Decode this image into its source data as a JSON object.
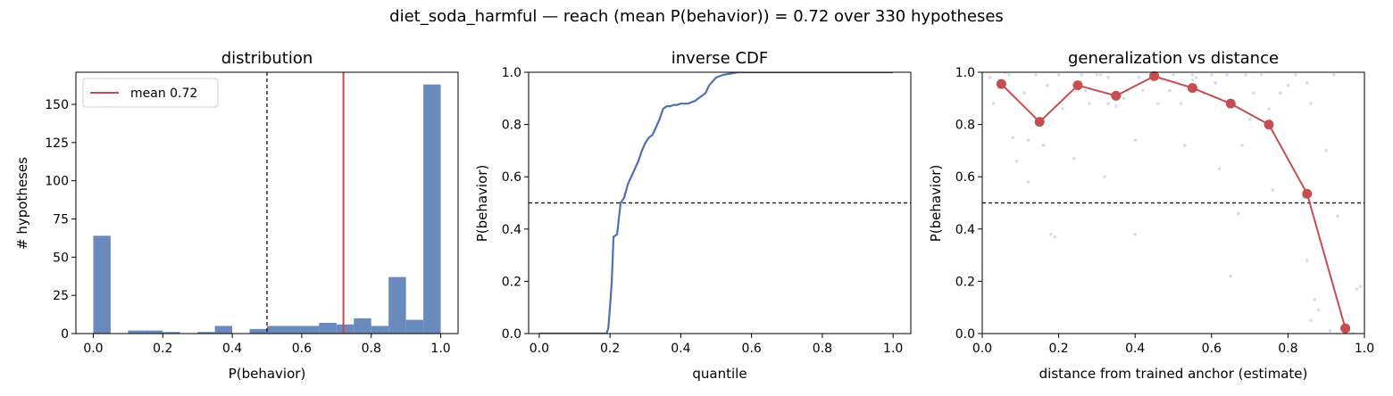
{
  "figure": {
    "title": "diet_soda_harmful  —  reach (mean P(behavior)) = 0.72  over 330 hypotheses"
  },
  "colors": {
    "bar": "#6a89bd",
    "line": "#4c72b0",
    "mean": "#c44e52",
    "scatter": "#b0c4de",
    "reference": "#000000"
  },
  "chart_data": [
    {
      "type": "bar",
      "title": "distribution",
      "xlabel": "P(behavior)",
      "ylabel": "# hypotheses",
      "xlim": [
        -0.05,
        1.05
      ],
      "ylim": [
        0,
        171
      ],
      "xticks": [
        0.0,
        0.2,
        0.4,
        0.6,
        0.8,
        1.0
      ],
      "xtick_labels": [
        "0.0",
        "0.2",
        "0.4",
        "0.6",
        "0.8",
        "1.0"
      ],
      "yticks": [
        0,
        25,
        50,
        75,
        100,
        125,
        150
      ],
      "ytick_labels": [
        "0",
        "25",
        "50",
        "75",
        "100",
        "125",
        "150"
      ],
      "bin_width": 0.05,
      "bin_starts": [
        0.0,
        0.1,
        0.15,
        0.2,
        0.3,
        0.35,
        0.45,
        0.5,
        0.55,
        0.6,
        0.65,
        0.7,
        0.75,
        0.8,
        0.85,
        0.9,
        0.95
      ],
      "values": [
        64,
        2,
        2,
        1,
        1,
        5,
        3,
        5,
        5,
        5,
        7,
        6,
        10,
        5,
        37,
        9,
        163
      ],
      "reference_line": 0.5,
      "mean": 0.72,
      "legend": [
        "mean 0.72"
      ],
      "legend_position": "top-left",
      "grid": false
    },
    {
      "type": "line",
      "title": "inverse CDF",
      "xlabel": "quantile",
      "ylabel": "P(behavior)",
      "xlim": [
        -0.03,
        1.05
      ],
      "ylim": [
        0,
        1
      ],
      "xticks": [
        0.0,
        0.2,
        0.4,
        0.6,
        0.8,
        1.0
      ],
      "xtick_labels": [
        "0.0",
        "0.2",
        "0.4",
        "0.6",
        "0.8",
        "1.0"
      ],
      "yticks": [
        0.0,
        0.2,
        0.4,
        0.6,
        0.8,
        1.0
      ],
      "ytick_labels": [
        "0.0",
        "0.2",
        "0.4",
        "0.6",
        "0.8",
        "1.0"
      ],
      "x": [
        0.0,
        0.19,
        0.195,
        0.2,
        0.205,
        0.21,
        0.22,
        0.23,
        0.24,
        0.25,
        0.26,
        0.27,
        0.28,
        0.29,
        0.3,
        0.31,
        0.32,
        0.33,
        0.34,
        0.35,
        0.36,
        0.37,
        0.38,
        0.39,
        0.4,
        0.42,
        0.44,
        0.45,
        0.47,
        0.48,
        0.5,
        0.52,
        0.54,
        0.56,
        0.6,
        1.0
      ],
      "y": [
        0.0,
        0.0,
        0.02,
        0.1,
        0.2,
        0.37,
        0.38,
        0.5,
        0.52,
        0.57,
        0.6,
        0.63,
        0.66,
        0.7,
        0.73,
        0.75,
        0.76,
        0.79,
        0.82,
        0.86,
        0.87,
        0.87,
        0.875,
        0.875,
        0.88,
        0.88,
        0.89,
        0.9,
        0.92,
        0.95,
        0.98,
        0.99,
        0.995,
        1.0,
        1.0,
        1.0
      ],
      "reference_line": 0.5,
      "grid": false
    },
    {
      "type": "scatter",
      "title": "generalization vs distance",
      "xlabel": "distance from trained anchor (estimate)",
      "ylabel": "P(behavior)",
      "xlim": [
        0,
        1
      ],
      "ylim": [
        0,
        1
      ],
      "xticks": [
        0.0,
        0.2,
        0.4,
        0.6,
        0.8,
        1.0
      ],
      "xtick_labels": [
        "0.0",
        "0.2",
        "0.4",
        "0.6",
        "0.8",
        "1.0"
      ],
      "yticks": [
        0.0,
        0.2,
        0.4,
        0.6,
        0.8,
        1.0
      ],
      "ytick_labels": [
        "0.0",
        "0.2",
        "0.4",
        "0.6",
        "0.8",
        "1.0"
      ],
      "binned_x": [
        0.05,
        0.15,
        0.25,
        0.35,
        0.45,
        0.55,
        0.65,
        0.75,
        0.85,
        0.95
      ],
      "binned_y": [
        0.955,
        0.81,
        0.95,
        0.91,
        0.985,
        0.94,
        0.88,
        0.8,
        0.535,
        0.02
      ],
      "points_x": [
        0.02,
        0.03,
        0.05,
        0.06,
        0.08,
        0.09,
        0.11,
        0.12,
        0.14,
        0.16,
        0.17,
        0.19,
        0.2,
        0.21,
        0.24,
        0.26,
        0.27,
        0.28,
        0.3,
        0.32,
        0.33,
        0.35,
        0.37,
        0.38,
        0.4,
        0.41,
        0.42,
        0.44,
        0.46,
        0.47,
        0.49,
        0.5,
        0.52,
        0.53,
        0.55,
        0.56,
        0.58,
        0.6,
        0.61,
        0.62,
        0.64,
        0.66,
        0.67,
        0.69,
        0.7,
        0.71,
        0.73,
        0.75,
        0.76,
        0.78,
        0.8,
        0.82,
        0.84,
        0.85,
        0.86,
        0.87,
        0.88,
        0.9,
        0.92,
        0.93,
        0.94,
        0.96,
        0.97,
        0.99,
        0.12,
        0.18,
        0.4,
        0.33,
        0.55,
        0.65,
        0.86,
        0.91,
        0.95,
        0.98,
        0.07,
        0.31,
        0.68,
        0.85
      ],
      "points_y": [
        0.98,
        0.88,
        0.95,
        1.0,
        0.75,
        0.66,
        0.92,
        0.74,
        0.99,
        0.72,
        0.95,
        0.37,
        0.99,
        0.86,
        0.67,
        0.99,
        0.93,
        0.88,
        0.99,
        0.6,
        0.98,
        0.87,
        0.9,
        0.93,
        0.38,
        0.98,
        0.93,
        0.99,
        0.88,
        0.97,
        0.93,
        0.99,
        0.88,
        0.72,
        0.97,
        0.98,
        0.92,
        0.99,
        0.96,
        0.63,
        0.99,
        0.88,
        0.46,
        0.99,
        0.82,
        0.92,
        0.99,
        0.86,
        0.55,
        0.92,
        0.95,
        0.99,
        0.52,
        0.28,
        0.88,
        0.13,
        0.09,
        0.7,
        0.99,
        0.45,
        0.02,
        0.01,
        0.0,
        0.18,
        0.58,
        0.38,
        0.74,
        0.88,
        0.99,
        0.22,
        0.05,
        0.01,
        0.0,
        0.17,
        0.99,
        0.99,
        0.72,
        0.96
      ],
      "reference_line": 0.5,
      "grid": false
    }
  ]
}
